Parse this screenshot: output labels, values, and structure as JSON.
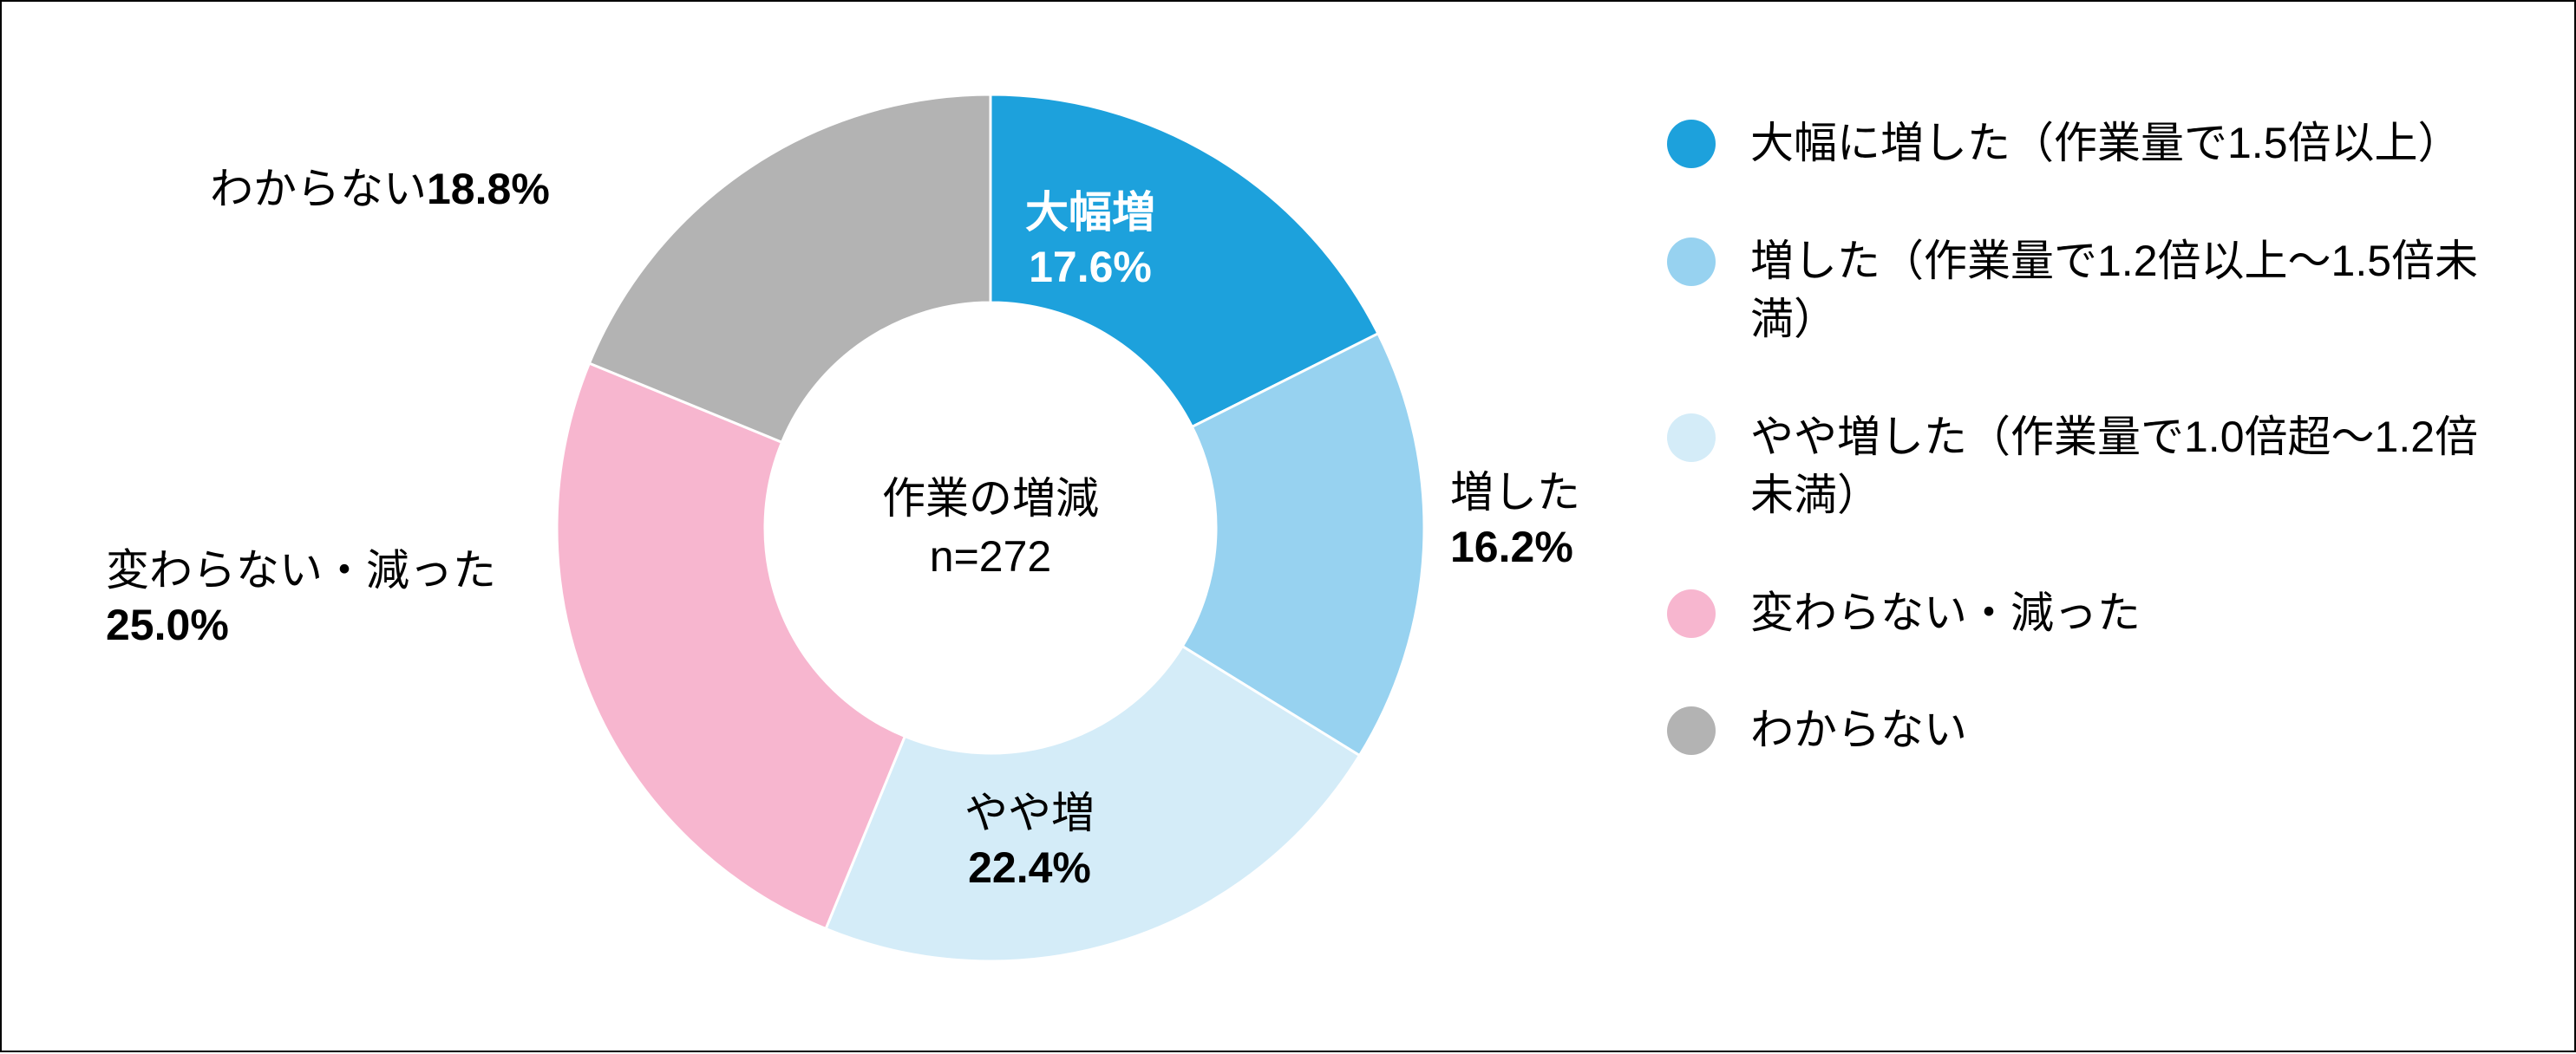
{
  "chart": {
    "type": "donut",
    "center_title": "作業の増減",
    "center_subtitle": "n=272",
    "background_color": "#ffffff",
    "border_color": "#000000",
    "outer_radius": 500,
    "inner_radius": 260,
    "center_font_size": 50,
    "label_font_size": 50,
    "legend_font_size": 50,
    "legend_swatch_radius": 28,
    "slices": [
      {
        "key": "large_increase",
        "short_label": "大幅増",
        "value": 17.6,
        "display_percent": "17.6%",
        "color": "#1da1dc",
        "label_style": "inside",
        "label_color": "#ffffff",
        "legend_label": "大幅に増した（作業量で1.5倍以上）"
      },
      {
        "key": "increase",
        "short_label": "増した",
        "value": 16.2,
        "display_percent": "16.2%",
        "color": "#97d2f0",
        "label_style": "outside-right",
        "label_color": "#000000",
        "legend_label": "増した（作業量で1.2倍以上〜1.5倍未満）"
      },
      {
        "key": "slight_increase",
        "short_label": "やや増",
        "value": 22.4,
        "display_percent": "22.4%",
        "color": "#d4ecf8",
        "label_style": "outside-bottom",
        "label_color": "#000000",
        "legend_label": "やや増した（作業量で1.0倍超〜1.2倍未満）"
      },
      {
        "key": "same_or_decrease",
        "short_label": "変わらない・減った",
        "value": 25.0,
        "display_percent": "25.0%",
        "color": "#f7b6cf",
        "label_style": "outside-left",
        "label_color": "#000000",
        "legend_label": "変わらない・減った"
      },
      {
        "key": "dont_know",
        "short_label": "わからない",
        "value": 18.8,
        "display_percent": "18.8%",
        "color": "#b3b3b3",
        "label_style": "outside-topleft",
        "label_color": "#000000",
        "legend_label": "わからない"
      }
    ]
  }
}
